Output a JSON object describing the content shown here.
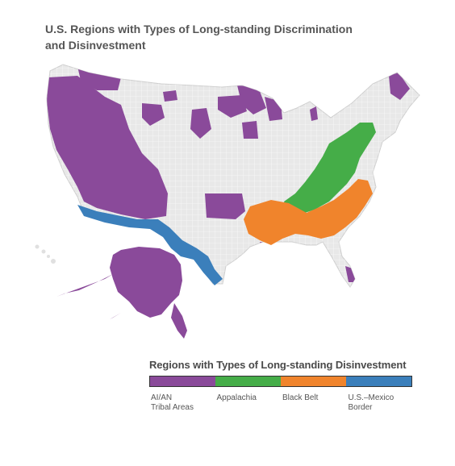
{
  "title_line1": "U.S. Regions with Types of Long-standing Discrimination",
  "title_line2": "and Disinvestment",
  "legend": {
    "title": "Regions with Types of Long-standing Disinvestment",
    "items": [
      {
        "label_line1": "AI/AN",
        "label_line2": "Tribal Areas",
        "color": "#8a4a9a"
      },
      {
        "label_line1": "Appalachia",
        "label_line2": "",
        "color": "#45ad48"
      },
      {
        "label_line1": "Black Belt",
        "label_line2": "",
        "color": "#f0842c"
      },
      {
        "label_line1": "U.S.–Mexico",
        "label_line2": "Border",
        "color": "#3b7fbb"
      }
    ]
  },
  "colors": {
    "land": "#e8e8e8",
    "county_border": "#ffffff",
    "tribal": "#8a4a9a",
    "appalachia": "#45ad48",
    "black_belt": "#f0842c",
    "border_region": "#3b7fbb"
  }
}
